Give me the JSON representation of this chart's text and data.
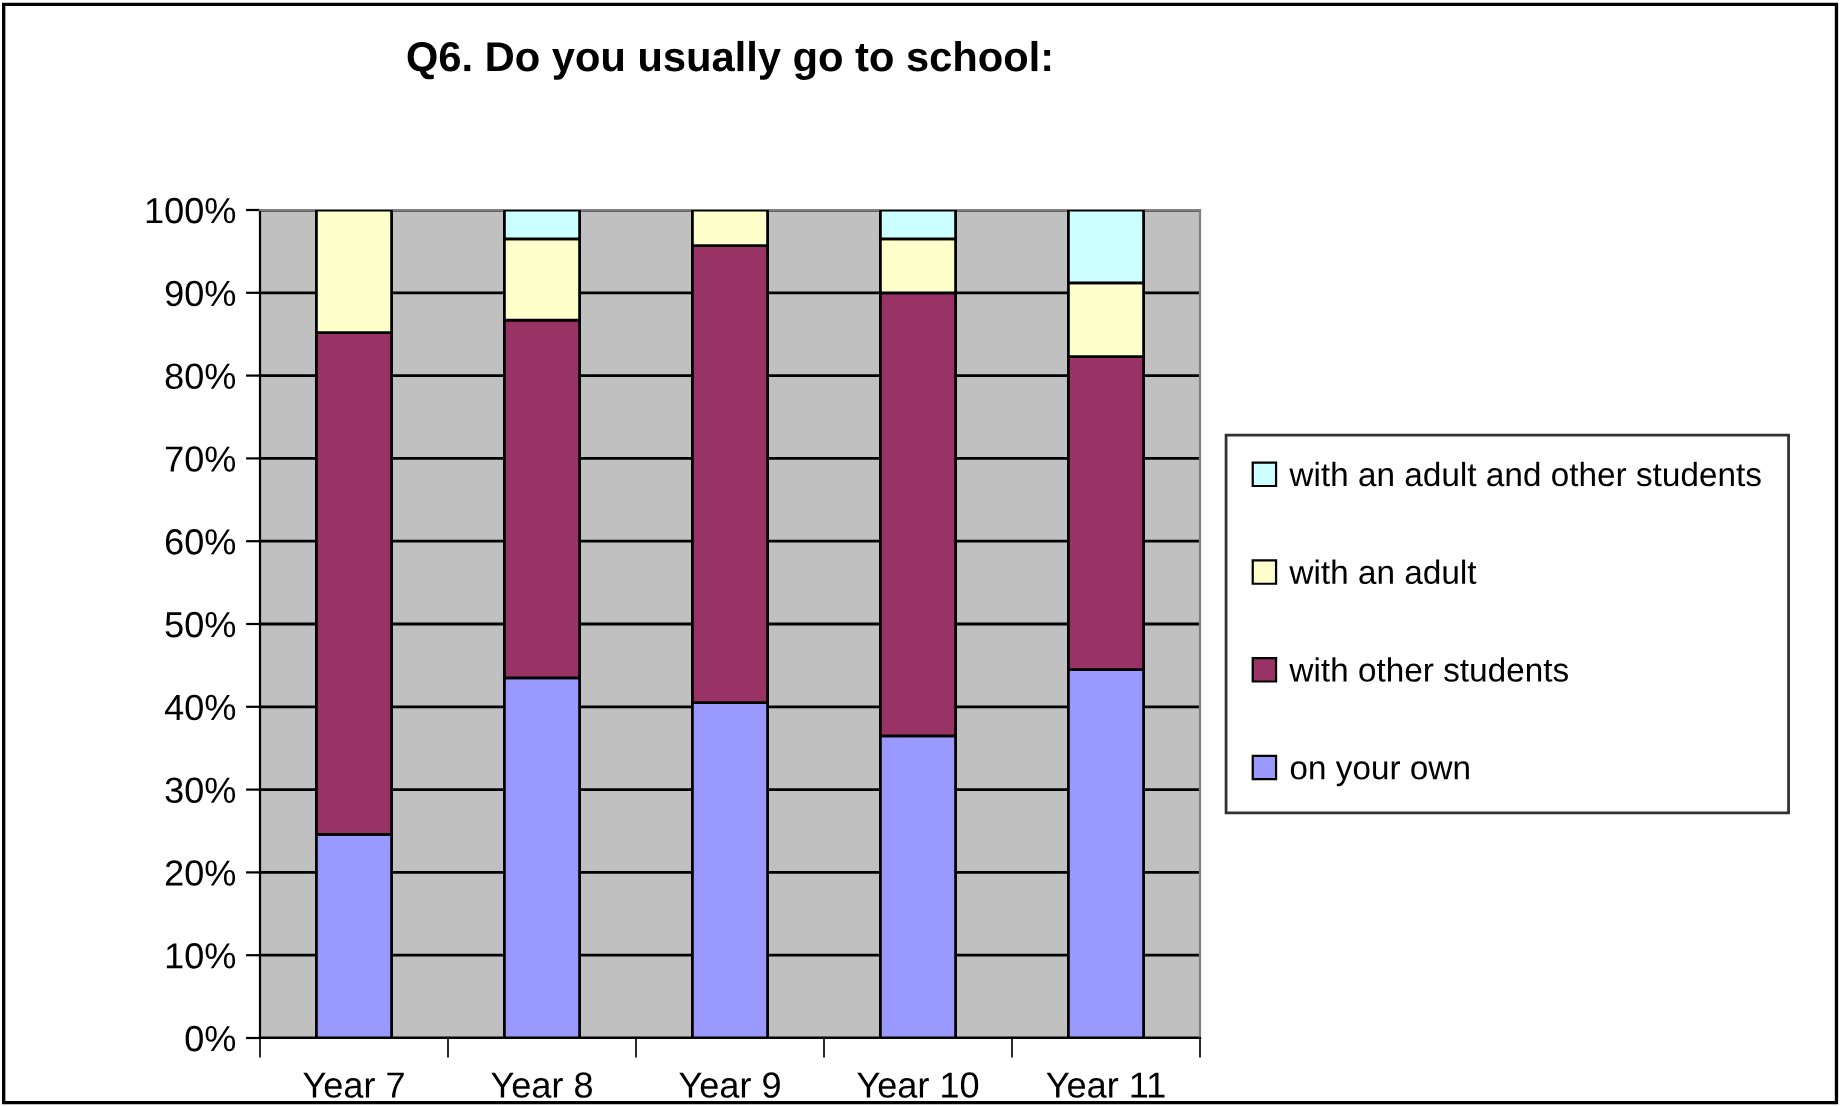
{
  "chart_data": {
    "type": "bar",
    "title": "Q6. Do you usually go to school:",
    "stacked": true,
    "categories": [
      "Year 7",
      "Year 8",
      "Year 9",
      "Year 10",
      "Year 11"
    ],
    "series": [
      {
        "name": "on your own",
        "color": "#9999ff",
        "values": [
          24.6,
          43.5,
          40.5,
          36.5,
          44.5
        ]
      },
      {
        "name": "with other students",
        "color": "#993366",
        "values": [
          60.6,
          43.2,
          55.2,
          53.5,
          37.8
        ]
      },
      {
        "name": "with an adult",
        "color": "#ffffcc",
        "values": [
          14.8,
          9.8,
          4.3,
          6.5,
          8.9
        ]
      },
      {
        "name": "with an adult and other students",
        "color": "#ccffff",
        "values": [
          null,
          3.5,
          null,
          3.5,
          8.8
        ]
      }
    ],
    "ylim": [
      0,
      100
    ],
    "yticks": [
      {
        "value": 0,
        "label": "0%"
      },
      {
        "value": 10,
        "label": "10%"
      },
      {
        "value": 20,
        "label": "20%"
      },
      {
        "value": 30,
        "label": "30%"
      },
      {
        "value": 40,
        "label": "40%"
      },
      {
        "value": 50,
        "label": "50%"
      },
      {
        "value": 60,
        "label": "60%"
      },
      {
        "value": 70,
        "label": "70%"
      },
      {
        "value": 80,
        "label": "80%"
      },
      {
        "value": 90,
        "label": "90%"
      },
      {
        "value": 100,
        "label": "100%"
      }
    ],
    "grid": "y",
    "legend": "right"
  }
}
